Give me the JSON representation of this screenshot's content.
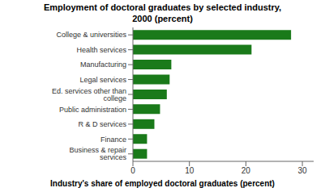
{
  "chart_data": {
    "type": "bar",
    "orientation": "horizontal",
    "title": "Employment of doctoral graduates by selected industry,\n2000 (percent)",
    "categories": [
      "Business & repair services",
      "Finance",
      "R & D services",
      "Public administration",
      "Ed. services other than college",
      "Legal services",
      "Manufacturing",
      "Health services",
      "College & universities"
    ],
    "values": [
      2.5,
      2.5,
      3.8,
      4.8,
      6.0,
      6.5,
      6.8,
      21.0,
      28.0
    ],
    "color": "#1a7a1a",
    "xlabel": "Industry's share of employed doctoral graduates (percent)",
    "xlim": [
      0,
      32
    ],
    "xticks": [
      0,
      10,
      20,
      30
    ],
    "grid": false
  }
}
